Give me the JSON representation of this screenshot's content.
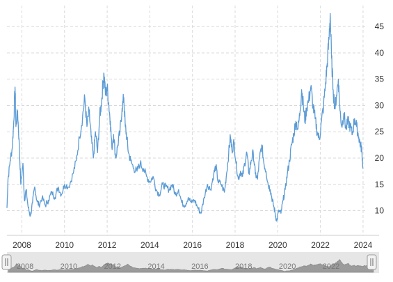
{
  "chart_data": {
    "type": "line",
    "title": "",
    "xlabel": "",
    "ylabel": "",
    "xlim": [
      2007.3,
      2024.1
    ],
    "ylim": [
      5.3,
      49
    ],
    "x_ticks": [
      "2008",
      "2010",
      "2012",
      "2014",
      "2016",
      "2018",
      "2020",
      "2022",
      "2024"
    ],
    "y_ticks": [
      10,
      15,
      20,
      25,
      30,
      35,
      40,
      45
    ],
    "grid": true,
    "line_color": "#5b9bd5",
    "series": [
      {
        "values": [
          [
            2007.3,
            10.5
          ],
          [
            2007.35,
            16.0
          ],
          [
            2007.45,
            19.5
          ],
          [
            2007.55,
            22.0
          ],
          [
            2007.62,
            27.0
          ],
          [
            2007.68,
            33.5
          ],
          [
            2007.72,
            26.0
          ],
          [
            2007.8,
            29.0
          ],
          [
            2007.88,
            22.0
          ],
          [
            2007.95,
            15.0
          ],
          [
            2008.05,
            19.0
          ],
          [
            2008.12,
            12.0
          ],
          [
            2008.2,
            14.0
          ],
          [
            2008.3,
            10.5
          ],
          [
            2008.4,
            9.0
          ],
          [
            2008.5,
            11.5
          ],
          [
            2008.6,
            14.5
          ],
          [
            2008.7,
            12.0
          ],
          [
            2008.8,
            11.0
          ],
          [
            2008.95,
            12.5
          ],
          [
            2009.1,
            11.0
          ],
          [
            2009.25,
            12.0
          ],
          [
            2009.4,
            13.5
          ],
          [
            2009.55,
            12.5
          ],
          [
            2009.7,
            14.5
          ],
          [
            2009.85,
            13.0
          ],
          [
            2010.0,
            15.0
          ],
          [
            2010.2,
            14.5
          ],
          [
            2010.4,
            17.0
          ],
          [
            2010.55,
            19.5
          ],
          [
            2010.7,
            24.0
          ],
          [
            2010.85,
            28.0
          ],
          [
            2010.95,
            31.5
          ],
          [
            2011.05,
            26.0
          ],
          [
            2011.15,
            29.0
          ],
          [
            2011.25,
            24.0
          ],
          [
            2011.35,
            20.0
          ],
          [
            2011.45,
            25.0
          ],
          [
            2011.55,
            21.0
          ],
          [
            2011.65,
            28.0
          ],
          [
            2011.72,
            30.0
          ],
          [
            2011.8,
            34.0
          ],
          [
            2011.85,
            36.0
          ],
          [
            2011.92,
            32.0
          ],
          [
            2012.0,
            33.5
          ],
          [
            2012.08,
            30.0
          ],
          [
            2012.15,
            27.0
          ],
          [
            2012.22,
            22.0
          ],
          [
            2012.3,
            24.5
          ],
          [
            2012.4,
            20.0
          ],
          [
            2012.5,
            22.5
          ],
          [
            2012.6,
            25.0
          ],
          [
            2012.7,
            29.5
          ],
          [
            2012.78,
            31.5
          ],
          [
            2012.85,
            26.0
          ],
          [
            2012.92,
            24.0
          ],
          [
            2013.0,
            21.0
          ],
          [
            2013.1,
            19.5
          ],
          [
            2013.25,
            18.0
          ],
          [
            2013.4,
            17.5
          ],
          [
            2013.55,
            19.0
          ],
          [
            2013.7,
            18.0
          ],
          [
            2013.85,
            16.5
          ],
          [
            2014.0,
            15.5
          ],
          [
            2014.15,
            16.5
          ],
          [
            2014.3,
            14.0
          ],
          [
            2014.45,
            13.0
          ],
          [
            2014.6,
            15.0
          ],
          [
            2014.75,
            14.5
          ],
          [
            2014.9,
            14.0
          ],
          [
            2015.05,
            15.0
          ],
          [
            2015.2,
            13.0
          ],
          [
            2015.35,
            14.0
          ],
          [
            2015.5,
            11.5
          ],
          [
            2015.65,
            11.0
          ],
          [
            2015.8,
            12.5
          ],
          [
            2015.95,
            11.5
          ],
          [
            2016.1,
            12.0
          ],
          [
            2016.25,
            10.5
          ],
          [
            2016.4,
            9.5
          ],
          [
            2016.55,
            12.5
          ],
          [
            2016.7,
            15.0
          ],
          [
            2016.85,
            14.0
          ],
          [
            2017.0,
            17.0
          ],
          [
            2017.1,
            18.5
          ],
          [
            2017.2,
            15.5
          ],
          [
            2017.35,
            15.0
          ],
          [
            2017.5,
            13.5
          ],
          [
            2017.6,
            17.0
          ],
          [
            2017.7,
            21.0
          ],
          [
            2017.78,
            24.0
          ],
          [
            2017.85,
            21.5
          ],
          [
            2017.95,
            23.0
          ],
          [
            2018.05,
            19.0
          ],
          [
            2018.15,
            16.0
          ],
          [
            2018.25,
            17.5
          ],
          [
            2018.35,
            16.5
          ],
          [
            2018.45,
            19.0
          ],
          [
            2018.55,
            21.0
          ],
          [
            2018.65,
            17.0
          ],
          [
            2018.75,
            19.5
          ],
          [
            2018.85,
            21.0
          ],
          [
            2018.95,
            17.0
          ],
          [
            2019.05,
            16.0
          ],
          [
            2019.15,
            20.0
          ],
          [
            2019.25,
            22.5
          ],
          [
            2019.35,
            19.0
          ],
          [
            2019.45,
            17.5
          ],
          [
            2019.55,
            15.0
          ],
          [
            2019.65,
            14.0
          ],
          [
            2019.72,
            12.5
          ],
          [
            2019.8,
            11.0
          ],
          [
            2019.88,
            9.5
          ],
          [
            2019.95,
            8.0
          ],
          [
            2020.05,
            10.0
          ],
          [
            2020.15,
            9.5
          ],
          [
            2020.25,
            12.0
          ],
          [
            2020.35,
            14.0
          ],
          [
            2020.45,
            17.0
          ],
          [
            2020.55,
            19.5
          ],
          [
            2020.65,
            22.5
          ],
          [
            2020.75,
            24.5
          ],
          [
            2020.85,
            27.0
          ],
          [
            2020.95,
            25.5
          ],
          [
            2021.05,
            29.0
          ],
          [
            2021.12,
            33.0
          ],
          [
            2021.2,
            30.0
          ],
          [
            2021.28,
            27.0
          ],
          [
            2021.35,
            29.5
          ],
          [
            2021.45,
            31.0
          ],
          [
            2021.55,
            33.5
          ],
          [
            2021.65,
            30.0
          ],
          [
            2021.75,
            27.5
          ],
          [
            2021.85,
            25.0
          ],
          [
            2021.95,
            23.5
          ],
          [
            2022.05,
            27.0
          ],
          [
            2022.15,
            30.0
          ],
          [
            2022.25,
            34.5
          ],
          [
            2022.32,
            38.0
          ],
          [
            2022.4,
            42.5
          ],
          [
            2022.46,
            47.5
          ],
          [
            2022.52,
            39.0
          ],
          [
            2022.6,
            33.0
          ],
          [
            2022.68,
            29.5
          ],
          [
            2022.76,
            32.0
          ],
          [
            2022.84,
            35.0
          ],
          [
            2022.92,
            29.0
          ],
          [
            2023.0,
            26.0
          ],
          [
            2023.1,
            28.5
          ],
          [
            2023.2,
            25.5
          ],
          [
            2023.3,
            27.0
          ],
          [
            2023.4,
            26.0
          ],
          [
            2023.5,
            24.5
          ],
          [
            2023.6,
            27.5
          ],
          [
            2023.7,
            26.0
          ],
          [
            2023.8,
            24.0
          ],
          [
            2023.88,
            22.5
          ],
          [
            2023.94,
            21.5
          ],
          [
            2024.0,
            18.0
          ]
        ]
      }
    ],
    "navigator": {
      "x_ticks": [
        "2008",
        "2010",
        "2012",
        "2014",
        "2016",
        "2018",
        "2020",
        "2022"
      ]
    }
  }
}
